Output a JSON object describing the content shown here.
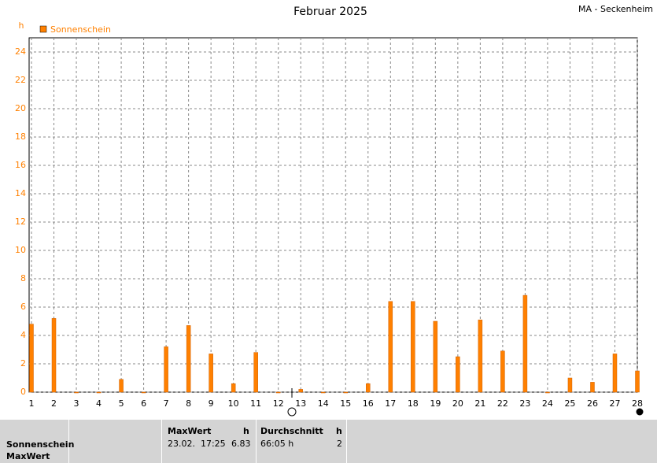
{
  "chart_data": {
    "type": "bar",
    "title": "Februar 2025",
    "station": "MA - Seckenheim",
    "y_unit": "h",
    "x": [
      1,
      2,
      3,
      4,
      5,
      6,
      7,
      8,
      9,
      10,
      11,
      12,
      13,
      14,
      15,
      16,
      17,
      18,
      19,
      20,
      21,
      22,
      23,
      24,
      25,
      26,
      27,
      28
    ],
    "xlim": [
      1,
      28
    ],
    "xticks": [
      1,
      2,
      3,
      4,
      5,
      6,
      7,
      8,
      9,
      10,
      11,
      12,
      13,
      14,
      15,
      16,
      17,
      18,
      19,
      20,
      21,
      22,
      23,
      24,
      25,
      26,
      27,
      28
    ],
    "series": [
      {
        "name": "Sonnenschein",
        "color": "#ff8000",
        "values": [
          4.8,
          5.2,
          0,
          0,
          0.9,
          0,
          3.2,
          4.7,
          2.7,
          0.6,
          2.8,
          0,
          0.2,
          0,
          0,
          0.6,
          6.4,
          6.4,
          5.0,
          2.5,
          5.1,
          2.9,
          6.83,
          0,
          1.0,
          0.7,
          2.7,
          1.5
        ]
      }
    ],
    "ylim": [
      0,
      25
    ],
    "yticks": [
      0,
      2,
      4,
      6,
      8,
      10,
      12,
      14,
      16,
      18,
      20,
      22,
      24
    ],
    "grid": true
  },
  "summary": {
    "row_labels": [
      "Sonnenschein",
      "MaxWert"
    ],
    "max_header": "MaxWert",
    "max_unit": "h",
    "max_time": "23.02.  17:25",
    "max_value": "6.83",
    "avg_header": "Durchschnitt",
    "avg_unit": "h",
    "avg_total": "66:05 h",
    "avg_value": "2"
  }
}
